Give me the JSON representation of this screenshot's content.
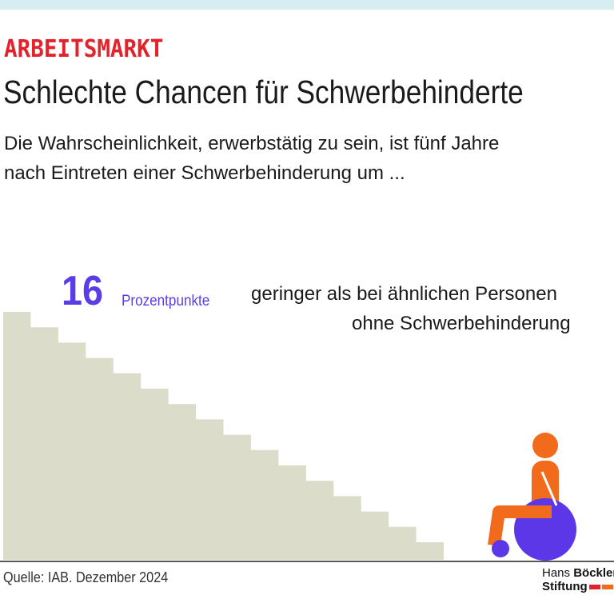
{
  "header": {
    "kicker": "ARBEITSMARKT",
    "title": "Schlechte Chancen für Schwerbehinderte",
    "subtitle_lines": [
      "Die Wahrscheinlichkeit, erwerbstätig zu sein, ist fünf Jahre",
      "nach Eintreten einer Schwerbehinderung um ..."
    ]
  },
  "highlight": {
    "value": "16",
    "unit": "Prozentpunkte",
    "text_lines": [
      "geringer als bei ähnlichen Personen",
      "ohne Schwerbehinderung"
    ]
  },
  "footer": {
    "source": "Quelle: IAB. Dezember 2024",
    "logo": {
      "hans": "Hans",
      "boeckler": "Böckler",
      "stiftung": "Stiftung"
    }
  }
}
